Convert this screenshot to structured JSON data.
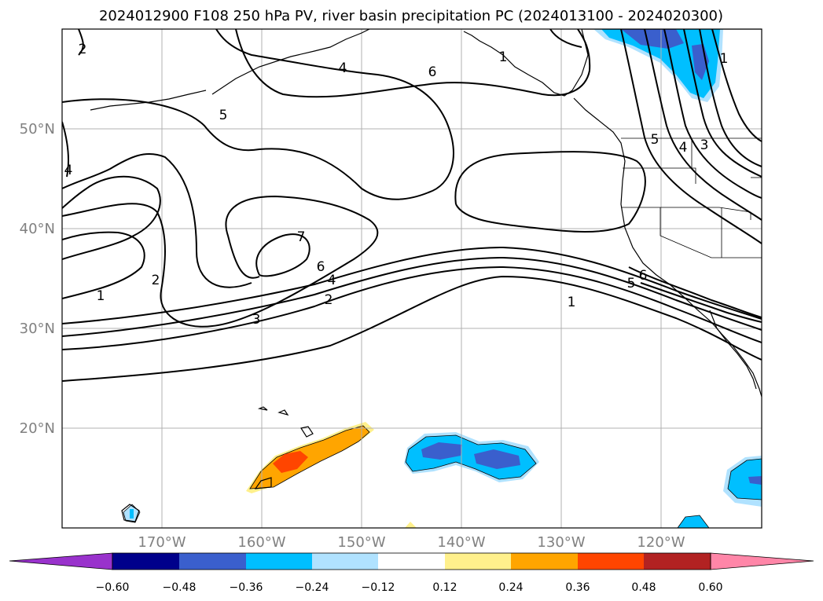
{
  "title": "2024012900 F108 250 hPa PV, river basin precipitation PC (2024013100 - 2024020300)",
  "map": {
    "projection": "PlateCarree",
    "lon_range": [
      -180,
      -110
    ],
    "lat_range": [
      10,
      60
    ],
    "gridlines": true,
    "longitude_labels": [
      "170°W",
      "160°W",
      "150°W",
      "140°W",
      "130°W",
      "120°W"
    ],
    "latitude_labels": [
      "50°N",
      "40°N",
      "30°N",
      "20°N"
    ]
  },
  "contours": {
    "field": "250 hPa PV",
    "labels": [
      "1",
      "2",
      "3",
      "4",
      "5",
      "6",
      "7",
      "6",
      "4",
      "2",
      "1",
      "5",
      "6",
      "4",
      "5",
      "4",
      "1",
      "3",
      "1",
      "2"
    ]
  },
  "colorbar": {
    "tick_labels": [
      "−0.60",
      "−0.48",
      "−0.36",
      "−0.24",
      "−0.12",
      "0.12",
      "0.24",
      "0.36",
      "0.48",
      "0.60"
    ],
    "colors": [
      "#9932cc",
      "#00008b",
      "#3a5fcd",
      "#00bfff",
      "#b0e2ff",
      "#ffffff",
      "#fff08c",
      "#ffa500",
      "#ff4500",
      "#b22222",
      "#ff86a8"
    ],
    "extend": "both"
  }
}
